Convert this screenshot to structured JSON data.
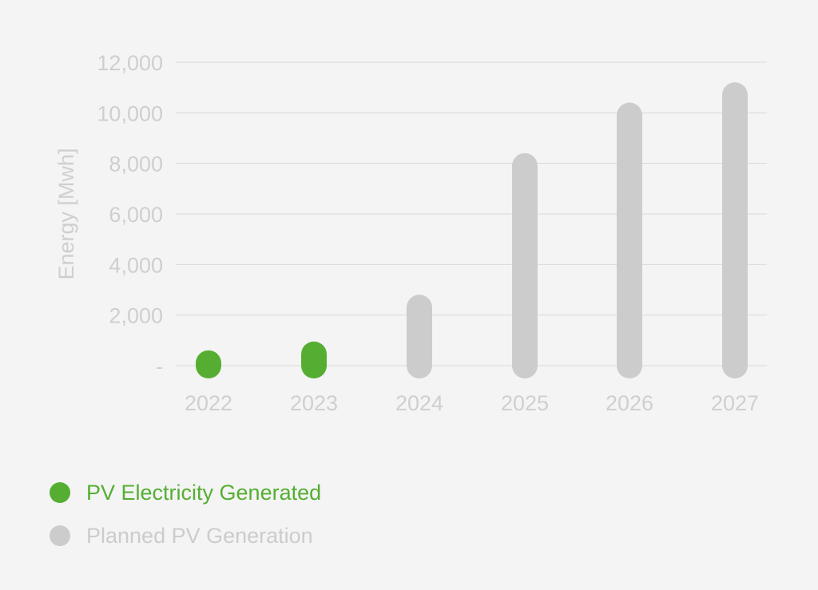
{
  "chart_data": {
    "type": "bar",
    "ylabel": "Energy [Mwh]",
    "ylim": [
      0,
      12000
    ],
    "yticks": [
      {
        "value": 0,
        "label": "-"
      },
      {
        "value": 2000,
        "label": "2,000"
      },
      {
        "value": 4000,
        "label": "4,000"
      },
      {
        "value": 6000,
        "label": "6,000"
      },
      {
        "value": 8000,
        "label": "8,000"
      },
      {
        "value": 10000,
        "label": "10,000"
      },
      {
        "value": 12000,
        "label": "12,000"
      }
    ],
    "categories": [
      "2022",
      "2023",
      "2024",
      "2025",
      "2026",
      "2027"
    ],
    "series": [
      {
        "name": "PV Electricity Generated",
        "color": "#55ae32",
        "values": [
          100,
          450,
          null,
          null,
          null,
          null
        ]
      },
      {
        "name": "Planned PV Generation",
        "color": "#cccccc",
        "values": [
          null,
          null,
          2300,
          7900,
          9900,
          10700
        ]
      }
    ],
    "grid": true,
    "legend": "bottom-left"
  },
  "colors": {
    "background": "#f4f4f4",
    "axis_text": "#cfcfcf",
    "grid": "#d9d9d9",
    "generated": "#55ae32",
    "planned": "#cccccc"
  }
}
